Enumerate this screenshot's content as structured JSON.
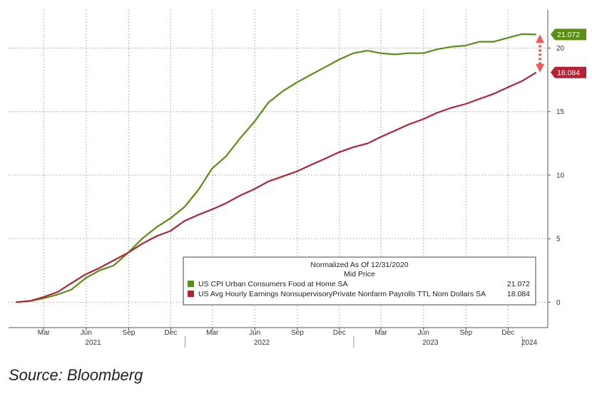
{
  "chart_data": {
    "type": "line",
    "title": "",
    "xlabel": "",
    "ylabel": "",
    "ylim": [
      -2,
      23
    ],
    "yticks": [
      0,
      5,
      10,
      15,
      20
    ],
    "grid": true,
    "legend_placement": "bottom-right",
    "legend": {
      "title_line1": "Normalized As Of 12/31/2020",
      "title_line2": "Mid Price"
    },
    "x": [
      "2020-12-31",
      "2021-01-31",
      "2021-02-28",
      "2021-03-31",
      "2021-04-30",
      "2021-05-31",
      "2021-06-30",
      "2021-07-31",
      "2021-08-31",
      "2021-09-30",
      "2021-10-31",
      "2021-11-30",
      "2021-12-31",
      "2022-01-31",
      "2022-02-28",
      "2022-03-31",
      "2022-04-30",
      "2022-05-31",
      "2022-06-30",
      "2022-07-31",
      "2022-08-31",
      "2022-09-30",
      "2022-10-31",
      "2022-11-30",
      "2022-12-31",
      "2023-01-31",
      "2023-02-28",
      "2023-03-31",
      "2023-04-30",
      "2023-05-31",
      "2023-06-30",
      "2023-07-31",
      "2023-08-31",
      "2023-09-30",
      "2023-10-31",
      "2023-11-30",
      "2023-12-31",
      "2024-01-31"
    ],
    "series": [
      {
        "name": "US CPI Urban Consumers Food at Home SA",
        "color": "#5a8f15",
        "last_value": "21.072",
        "values": [
          0.0,
          0.1,
          0.3,
          0.6,
          1.0,
          1.9,
          2.5,
          2.9,
          3.9,
          5.0,
          5.9,
          6.6,
          7.5,
          8.9,
          10.5,
          11.5,
          12.9,
          14.2,
          15.7,
          16.6,
          17.3,
          17.9,
          18.5,
          19.1,
          19.6,
          19.8,
          19.6,
          19.5,
          19.6,
          19.6,
          19.9,
          20.1,
          20.2,
          20.5,
          20.5,
          20.8,
          21.1,
          21.072
        ]
      },
      {
        "name": "US Avg Hourly Earnings NonsupervisoryPrivate Nonfarm Payrolls TTL Nom Dollars SA",
        "color": "#b22435",
        "last_value": "18.084",
        "values": [
          0.0,
          0.1,
          0.4,
          0.8,
          1.5,
          2.2,
          2.7,
          3.3,
          3.9,
          4.6,
          5.2,
          5.6,
          6.4,
          6.9,
          7.3,
          7.8,
          8.4,
          8.9,
          9.5,
          9.9,
          10.3,
          10.8,
          11.3,
          11.8,
          12.2,
          12.5,
          13.0,
          13.5,
          14.0,
          14.4,
          14.9,
          15.3,
          15.6,
          16.0,
          16.4,
          16.9,
          17.4,
          18.084
        ]
      }
    ],
    "month_ticks": [
      {
        "label": "Mar",
        "x": "2021-03-01"
      },
      {
        "label": "Jun",
        "x": "2021-06-01"
      },
      {
        "label": "Sep",
        "x": "2021-09-01"
      },
      {
        "label": "Dec",
        "x": "2021-12-01"
      },
      {
        "label": "Mar",
        "x": "2022-03-01"
      },
      {
        "label": "Jun",
        "x": "2022-06-01"
      },
      {
        "label": "Sep",
        "x": "2022-09-01"
      },
      {
        "label": "Dec",
        "x": "2022-12-01"
      },
      {
        "label": "Mar",
        "x": "2023-03-01"
      },
      {
        "label": "Jun",
        "x": "2023-06-01"
      },
      {
        "label": "Sep",
        "x": "2023-09-01"
      },
      {
        "label": "Dec",
        "x": "2023-12-01"
      }
    ],
    "year_labels": [
      {
        "label": "2021",
        "x": "2021-06-16"
      },
      {
        "label": "2022",
        "x": "2022-06-16"
      },
      {
        "label": "2023",
        "x": "2023-06-16"
      },
      {
        "label": "2024",
        "x": "2024-01-16"
      }
    ],
    "year_boundaries": [
      "2022-01-01",
      "2023-01-01",
      "2024-01-01"
    ],
    "x_range": [
      "2020-12-15",
      "2024-02-25"
    ]
  },
  "caption": "Source: Bloomberg"
}
